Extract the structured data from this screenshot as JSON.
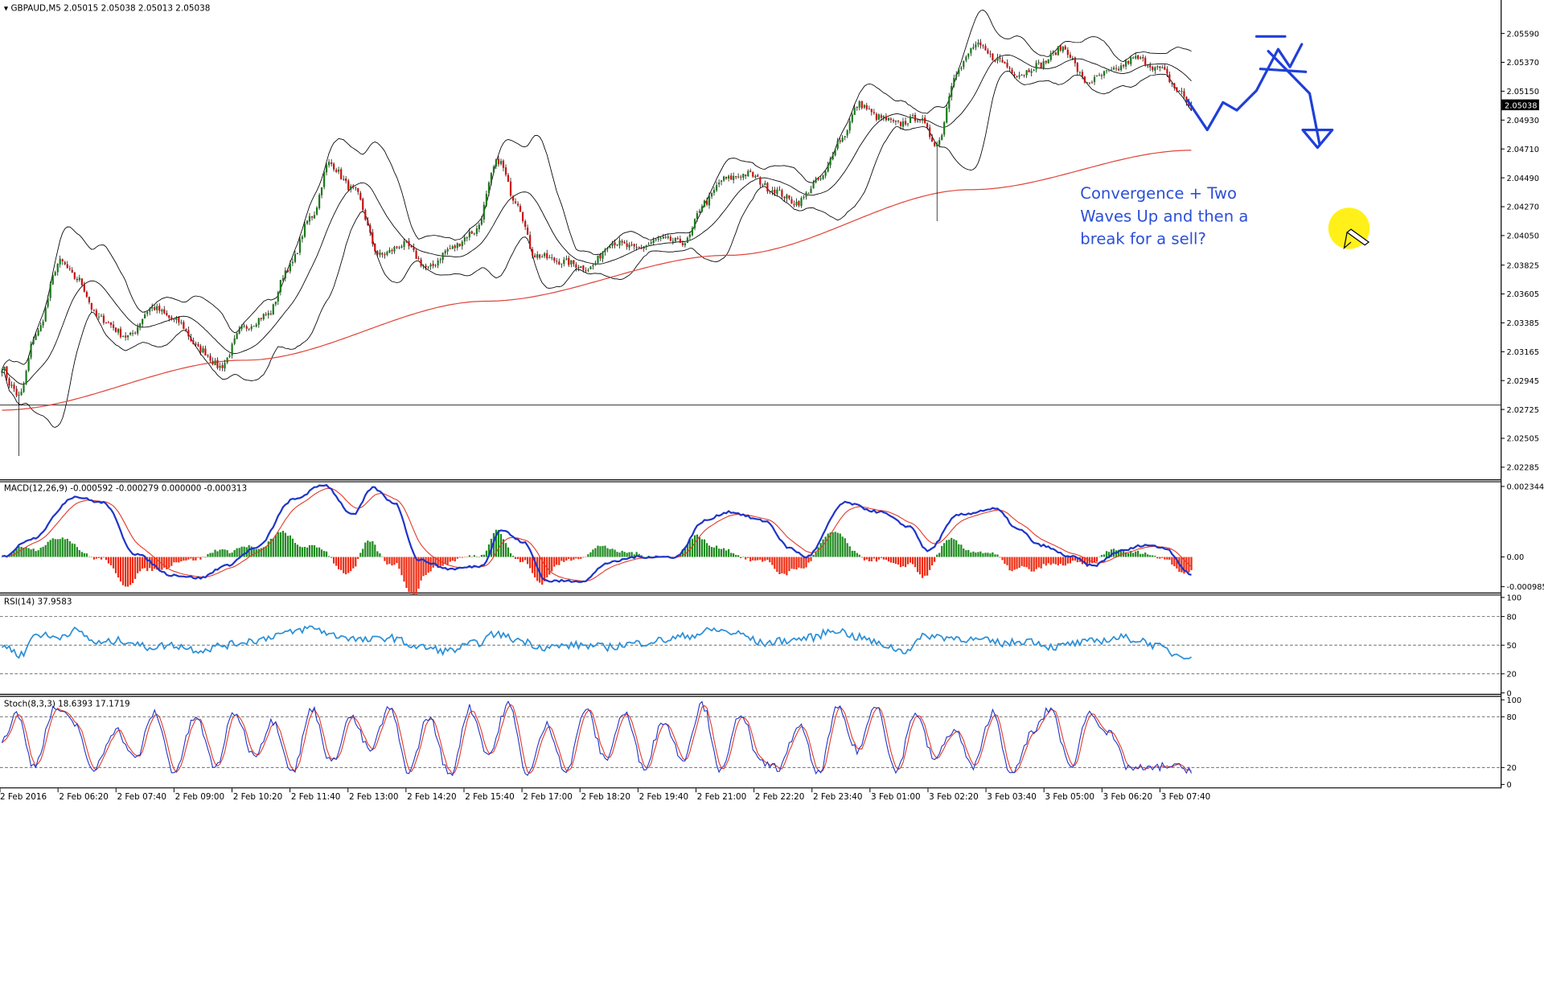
{
  "window": {
    "symbol_header": "GBPAUD,M5  2.05015 2.05038 2.05013 2.05038",
    "current_price": "2.05038"
  },
  "annotation": {
    "text": "Convergence + Two\nWaves Up and then a\nbreak for a sell?",
    "color": "#2b4fd8"
  },
  "indicators": {
    "macd_label": "MACD(12,26,9) -0.000592 -0.000279 0.000000 -0.000313",
    "rsi_label": "RSI(14) 37.9583",
    "stoch_label": "Stoch(8,3,3) 18.6393 17.1719"
  },
  "colors": {
    "bull_candle": "#1a7a1a",
    "bear_candle": "#cc1010",
    "bollinger": "#000000",
    "ma200": "#e0453a",
    "macd_line": "#1f35c8",
    "macd_signal": "#e23a2a",
    "hist_pos": "#1e8a1e",
    "hist_neg": "#ee2a10",
    "rsi": "#2b8fd6",
    "stoch_main": "#1f35c8",
    "stoch_signal": "#e23a2a",
    "drawing": "#1f3fd8"
  },
  "chart_data": [
    {
      "type": "candlestick",
      "title": "GBPAUD,M5",
      "ylim": [
        2.022,
        2.0574
      ],
      "y_ticks": [
        "2.05590",
        "2.05370",
        "2.05150",
        "2.04930",
        "2.04710",
        "2.04490",
        "2.04270",
        "2.04050",
        "2.03825",
        "2.03605",
        "2.03385",
        "2.03165",
        "2.02945",
        "2.02725",
        "2.02505",
        "2.02285"
      ],
      "x_ticks": [
        "2 Feb 2016",
        "2 Feb 06:20",
        "2 Feb 07:40",
        "2 Feb 09:00",
        "2 Feb 10:20",
        "2 Feb 11:40",
        "2 Feb 13:00",
        "2 Feb 14:20",
        "2 Feb 15:40",
        "2 Feb 17:00",
        "2 Feb 18:20",
        "2 Feb 19:40",
        "2 Feb 21:00",
        "2 Feb 22:20",
        "2 Feb 23:40",
        "3 Feb 01:00",
        "3 Feb 02:20",
        "3 Feb 03:40",
        "3 Feb 05:00",
        "3 Feb 06:20",
        "3 Feb 07:40"
      ],
      "anchors": [
        [
          0,
          2.0305
        ],
        [
          4,
          2.029
        ],
        [
          7,
          2.0282
        ],
        [
          14,
          2.033
        ],
        [
          24,
          2.0385
        ],
        [
          31,
          2.0372
        ],
        [
          40,
          2.0342
        ],
        [
          52,
          2.0328
        ],
        [
          62,
          2.035
        ],
        [
          72,
          2.034
        ],
        [
          82,
          2.0318
        ],
        [
          90,
          2.0305
        ],
        [
          100,
          2.0335
        ],
        [
          110,
          2.0345
        ],
        [
          118,
          2.038
        ],
        [
          128,
          2.042
        ],
        [
          135,
          2.046
        ],
        [
          145,
          2.044
        ],
        [
          156,
          2.039
        ],
        [
          166,
          2.0398
        ],
        [
          176,
          2.038
        ],
        [
          185,
          2.0395
        ],
        [
          195,
          2.0408
        ],
        [
          205,
          2.0462
        ],
        [
          212,
          2.0432
        ],
        [
          220,
          2.039
        ],
        [
          232,
          2.0385
        ],
        [
          242,
          2.038
        ],
        [
          252,
          2.04
        ],
        [
          262,
          2.0395
        ],
        [
          272,
          2.0402
        ],
        [
          282,
          2.04
        ],
        [
          290,
          2.043
        ],
        [
          298,
          2.0448
        ],
        [
          308,
          2.0452
        ],
        [
          318,
          2.044
        ],
        [
          328,
          2.043
        ],
        [
          338,
          2.0448
        ],
        [
          346,
          2.0478
        ],
        [
          354,
          2.0505
        ],
        [
          362,
          2.0495
        ],
        [
          370,
          2.049
        ],
        [
          378,
          2.0495
        ],
        [
          386,
          2.0475
        ],
        [
          394,
          2.053
        ],
        [
          402,
          2.055
        ],
        [
          410,
          2.054
        ],
        [
          420,
          2.0528
        ],
        [
          428,
          2.0535
        ],
        [
          438,
          2.0548
        ],
        [
          448,
          2.0522
        ],
        [
          458,
          2.053
        ],
        [
          468,
          2.054
        ],
        [
          478,
          2.0532
        ],
        [
          486,
          2.0515
        ],
        [
          491,
          2.0503
        ]
      ],
      "ma200_anchors": [
        [
          0,
          2.0272
        ],
        [
          100,
          2.031
        ],
        [
          200,
          2.0355
        ],
        [
          300,
          2.039
        ],
        [
          400,
          2.044
        ],
        [
          491,
          2.047
        ]
      ],
      "projection": "down"
    },
    {
      "type": "line",
      "title": "MACD(12,26,9)",
      "ylim": [
        -0.00115,
        0.00245
      ],
      "y_ticks": [
        "0.002344",
        "0.00",
        "-0.000985"
      ],
      "macd_anchors": [
        [
          0,
          0.0
        ],
        [
          12,
          0.0006
        ],
        [
          30,
          0.002
        ],
        [
          42,
          0.0018
        ],
        [
          55,
          0.0001
        ],
        [
          70,
          -0.0006
        ],
        [
          82,
          -0.0007
        ],
        [
          92,
          -0.0003
        ],
        [
          105,
          0.0003
        ],
        [
          120,
          0.0019
        ],
        [
          133,
          0.0024
        ],
        [
          145,
          0.0014
        ],
        [
          153,
          0.0023
        ],
        [
          162,
          0.0018
        ],
        [
          172,
          -0.0001
        ],
        [
          185,
          -0.0004
        ],
        [
          198,
          -0.0003
        ],
        [
          206,
          0.0009
        ],
        [
          215,
          0.0005
        ],
        [
          225,
          -0.0008
        ],
        [
          240,
          -0.0008
        ],
        [
          250,
          -0.0002
        ],
        [
          262,
          0.0
        ],
        [
          278,
          0.0
        ],
        [
          290,
          0.0012
        ],
        [
          300,
          0.0015
        ],
        [
          315,
          0.0012
        ],
        [
          325,
          0.0003
        ],
        [
          332,
          0.0
        ],
        [
          348,
          0.0018
        ],
        [
          362,
          0.0015
        ],
        [
          375,
          0.001
        ],
        [
          382,
          0.0002
        ],
        [
          395,
          0.0014
        ],
        [
          410,
          0.0016
        ],
        [
          420,
          0.0009
        ],
        [
          428,
          0.0004
        ],
        [
          442,
          0.0
        ],
        [
          450,
          -0.0003
        ],
        [
          462,
          0.0002
        ],
        [
          472,
          0.0004
        ],
        [
          480,
          0.0003
        ],
        [
          491,
          -0.0006
        ]
      ],
      "signal_smoothing": 9,
      "histogram": "macd_minus_signal"
    },
    {
      "type": "line",
      "title": "RSI(14)",
      "ylim": [
        0,
        100
      ],
      "y_ticks": [
        "100",
        "80",
        "50",
        "20",
        "0"
      ],
      "levels": [
        80,
        50,
        20
      ],
      "anchors": [
        [
          0,
          50
        ],
        [
          8,
          40
        ],
        [
          14,
          62
        ],
        [
          22,
          58
        ],
        [
          30,
          65
        ],
        [
          40,
          52
        ],
        [
          50,
          55
        ],
        [
          60,
          48
        ],
        [
          70,
          50
        ],
        [
          82,
          45
        ],
        [
          92,
          50
        ],
        [
          104,
          55
        ],
        [
          116,
          62
        ],
        [
          128,
          68
        ],
        [
          138,
          60
        ],
        [
          150,
          55
        ],
        [
          160,
          58
        ],
        [
          172,
          48
        ],
        [
          184,
          44
        ],
        [
          196,
          52
        ],
        [
          204,
          62
        ],
        [
          212,
          56
        ],
        [
          224,
          48
        ],
        [
          238,
          50
        ],
        [
          250,
          48
        ],
        [
          262,
          52
        ],
        [
          272,
          55
        ],
        [
          284,
          60
        ],
        [
          294,
          66
        ],
        [
          304,
          62
        ],
        [
          314,
          52
        ],
        [
          324,
          55
        ],
        [
          334,
          58
        ],
        [
          344,
          66
        ],
        [
          354,
          58
        ],
        [
          364,
          50
        ],
        [
          372,
          44
        ],
        [
          382,
          60
        ],
        [
          392,
          58
        ],
        [
          404,
          55
        ],
        [
          414,
          52
        ],
        [
          424,
          55
        ],
        [
          434,
          48
        ],
        [
          444,
          52
        ],
        [
          454,
          55
        ],
        [
          462,
          58
        ],
        [
          470,
          55
        ],
        [
          478,
          48
        ],
        [
          485,
          40
        ],
        [
          491,
          39
        ]
      ]
    },
    {
      "type": "line",
      "title": "Stoch(8,3,3)",
      "ylim": [
        0,
        100
      ],
      "y_ticks": [
        "100",
        "80",
        "20",
        "0"
      ],
      "levels": [
        80,
        20
      ],
      "anchors": [
        [
          0,
          50
        ],
        [
          6,
          85
        ],
        [
          13,
          22
        ],
        [
          22,
          90
        ],
        [
          31,
          70
        ],
        [
          37,
          15
        ],
        [
          47,
          65
        ],
        [
          55,
          30
        ],
        [
          63,
          85
        ],
        [
          71,
          15
        ],
        [
          80,
          80
        ],
        [
          88,
          20
        ],
        [
          96,
          85
        ],
        [
          104,
          35
        ],
        [
          112,
          75
        ],
        [
          120,
          15
        ],
        [
          128,
          90
        ],
        [
          136,
          25
        ],
        [
          144,
          80
        ],
        [
          152,
          40
        ],
        [
          160,
          90
        ],
        [
          168,
          15
        ],
        [
          176,
          80
        ],
        [
          185,
          10
        ],
        [
          193,
          90
        ],
        [
          201,
          35
        ],
        [
          209,
          95
        ],
        [
          217,
          12
        ],
        [
          225,
          70
        ],
        [
          233,
          15
        ],
        [
          241,
          90
        ],
        [
          249,
          30
        ],
        [
          257,
          85
        ],
        [
          265,
          20
        ],
        [
          273,
          75
        ],
        [
          281,
          30
        ],
        [
          289,
          95
        ],
        [
          297,
          15
        ],
        [
          305,
          85
        ],
        [
          313,
          25
        ],
        [
          321,
          20
        ],
        [
          329,
          70
        ],
        [
          337,
          12
        ],
        [
          345,
          90
        ],
        [
          353,
          40
        ],
        [
          361,
          95
        ],
        [
          369,
          15
        ],
        [
          377,
          85
        ],
        [
          385,
          30
        ],
        [
          393,
          65
        ],
        [
          401,
          20
        ],
        [
          409,
          85
        ],
        [
          417,
          10
        ],
        [
          425,
          60
        ],
        [
          433,
          90
        ],
        [
          441,
          20
        ],
        [
          449,
          85
        ],
        [
          457,
          60
        ],
        [
          465,
          20
        ],
        [
          473,
          18
        ],
        [
          481,
          22
        ],
        [
          491,
          18
        ]
      ]
    }
  ]
}
